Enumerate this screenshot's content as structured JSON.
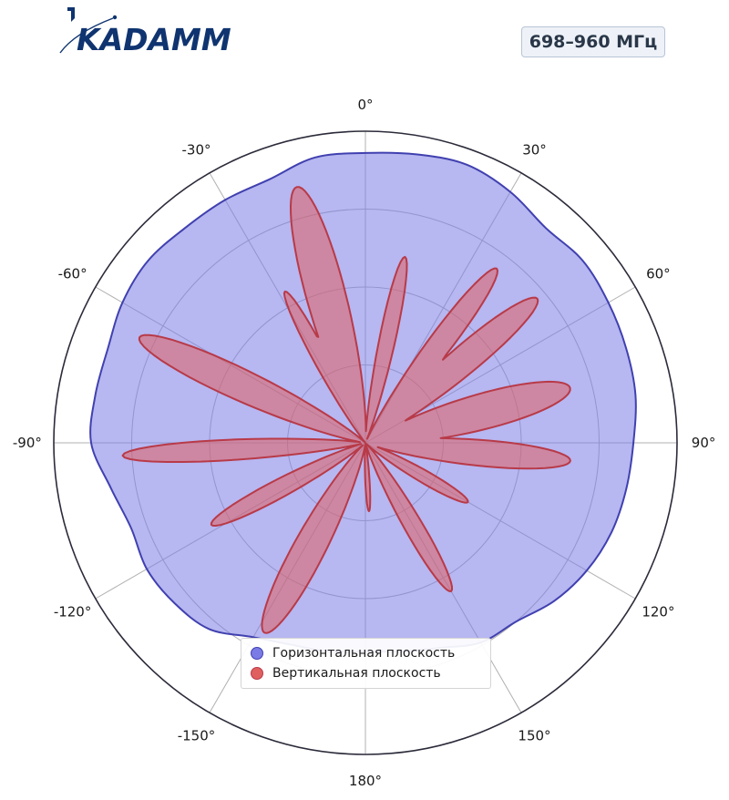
{
  "brand": {
    "logo_text": "KADAMM",
    "primary_color": "#0f3470"
  },
  "badge": {
    "band": "698–960 МГц"
  },
  "chart_data": {
    "type": "polar",
    "theta_unit": "degrees",
    "theta_direction": "clockwise",
    "theta_zero": "top",
    "angle_labels": [
      "0°",
      "30°",
      "60°",
      "90°",
      "120°",
      "150°",
      "180°",
      "-150°",
      "-120°",
      "-90°",
      "-60°",
      "-30°"
    ],
    "angle_label_values": [
      0,
      30,
      60,
      90,
      120,
      150,
      180,
      -150,
      -120,
      -90,
      -60,
      -30
    ],
    "r_range": [
      0,
      1
    ],
    "r_gridlines": [
      0.25,
      0.5,
      0.75
    ],
    "grid": true,
    "legend_position": "bottom-center",
    "series": [
      {
        "name": "Горизонтальная плоскость",
        "color": "#7b7be6",
        "edge_color": "#4040b0",
        "fill_opacity": 0.55,
        "theta": [
          0,
          10,
          20,
          30,
          40,
          50,
          60,
          70,
          80,
          90,
          100,
          110,
          120,
          130,
          140,
          150,
          160,
          170,
          180,
          -170,
          -160,
          -150,
          -140,
          -130,
          -120,
          -110,
          -100,
          -90,
          -80,
          -70,
          -60,
          -50,
          -40,
          -30,
          -20,
          -10
        ],
        "r": [
          0.93,
          0.94,
          0.95,
          0.93,
          0.9,
          0.91,
          0.9,
          0.89,
          0.88,
          0.86,
          0.85,
          0.84,
          0.82,
          0.79,
          0.75,
          0.74,
          0.7,
          0.68,
          0.67,
          0.68,
          0.69,
          0.72,
          0.78,
          0.8,
          0.81,
          0.8,
          0.83,
          0.88,
          0.88,
          0.88,
          0.9,
          0.91,
          0.9,
          0.9,
          0.9,
          0.93
        ]
      },
      {
        "name": "Вертикальная плоскость",
        "color": "#e06060",
        "edge_color": "#b83a48",
        "fill_opacity": 0.55,
        "lobes": [
          {
            "center": -15,
            "peak": 0.85,
            "width": 7
          },
          {
            "center": -28,
            "peak": 0.55,
            "width": 4
          },
          {
            "center": 12,
            "peak": 0.61,
            "width": 4
          },
          {
            "center": 37,
            "peak": 0.7,
            "width": 5
          },
          {
            "center": 50,
            "peak": 0.72,
            "width": 6
          },
          {
            "center": 75,
            "peak": 0.68,
            "width": 8
          },
          {
            "center": 95,
            "peak": 0.66,
            "width": 6
          },
          {
            "center": 120,
            "peak": 0.38,
            "width": 5
          },
          {
            "center": 150,
            "peak": 0.55,
            "width": 5
          },
          {
            "center": 177,
            "peak": 0.22,
            "width": 3
          },
          {
            "center": -152,
            "peak": 0.69,
            "width": 7
          },
          {
            "center": -118,
            "peak": 0.56,
            "width": 5
          },
          {
            "center": -93,
            "peak": 0.78,
            "width": 4
          },
          {
            "center": -65,
            "peak": 0.8,
            "width": 6
          }
        ]
      }
    ]
  }
}
